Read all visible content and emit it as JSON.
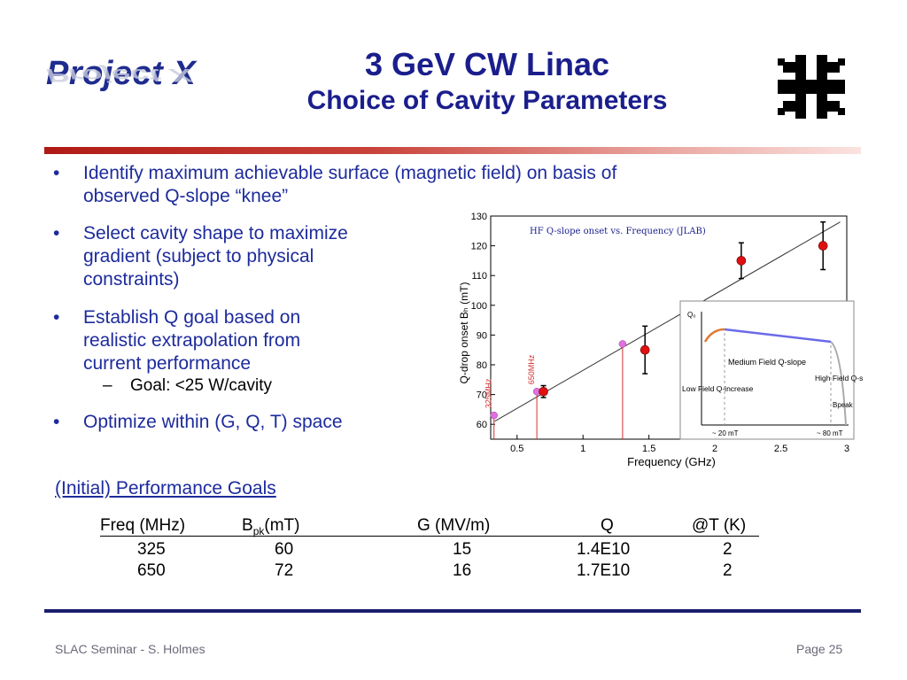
{
  "header": {
    "logo_text": "Project X",
    "title_line1": "3 GeV CW Linac",
    "title_line2": "Choice of Cavity Parameters"
  },
  "bullets": [
    {
      "line1": "Identify maximum achievable surface (magnetic field) on basis of",
      "line2": "observed Q-slope “knee”"
    },
    {
      "line1": "Select cavity shape to maximize",
      "line2": "gradient (subject to physical",
      "line3": "constraints)"
    },
    {
      "line1": "Establish Q goal based on",
      "line2": "realistic extrapolation from",
      "line3": "current performance"
    },
    {
      "line1": "Optimize within (G, Q, T) space"
    }
  ],
  "sub_bullet": {
    "dash": "–",
    "text": "Goal: <25 W/cavity"
  },
  "bullet_char": "•",
  "chart_data": {
    "type": "scatter",
    "title": "HF Q-slope onset vs. Frequency (JLAB)",
    "xlabel": "Frequency (GHz)",
    "ylabel": "Q-drop onset Bₕ (mT)",
    "xlim": [
      0.3,
      3.0
    ],
    "ylim": [
      55,
      130
    ],
    "x_ticks": [
      "0.5",
      "1",
      "1.5",
      "2",
      "2.5",
      "3"
    ],
    "y_ticks": [
      "60",
      "70",
      "80",
      "90",
      "100",
      "110",
      "120",
      "130"
    ],
    "measured_points": [
      {
        "x": 0.7,
        "y": 71,
        "err": 2
      },
      {
        "x": 1.47,
        "y": 85,
        "err": 8
      },
      {
        "x": 2.2,
        "y": 115,
        "err": 6
      },
      {
        "x": 2.82,
        "y": 120,
        "err": 8
      }
    ],
    "goal_points": [
      {
        "x": 0.325,
        "y": 63,
        "label": "325MHz"
      },
      {
        "x": 0.65,
        "y": 71,
        "label": "650MHz"
      },
      {
        "x": 1.3,
        "y": 87,
        "label": ""
      }
    ],
    "fit_line": {
      "x1": 0.33,
      "y1": 61,
      "x2": 2.95,
      "y2": 128
    },
    "inset": {
      "y_label": "Q₀",
      "x_label": "Bpeak",
      "labels": [
        "Medium Field Q-slope",
        "Low Field Q-increase",
        "High Field Q-slope",
        "~ 20 mT",
        "~ 80 mT"
      ]
    }
  },
  "performance": {
    "title": "(Initial) Performance Goals",
    "headers": [
      "Freq (MHz)",
      "B",
      "pk",
      "(mT)",
      "G (MV/m)",
      "Q",
      "@T (K)"
    ],
    "rows": [
      [
        "325",
        "60",
        "15",
        "1.4E10",
        "2"
      ],
      [
        "650",
        "72",
        "16",
        "1.7E10",
        "2"
      ]
    ]
  },
  "footer": {
    "left": "SLAC Seminar - S. Holmes",
    "right": "Page 25"
  },
  "colors": {
    "title": "#1a1e8c",
    "bullet_text": "#1d2b9c",
    "top_bar": "#b01a14",
    "bottom_bar": "#1a1e6e"
  }
}
